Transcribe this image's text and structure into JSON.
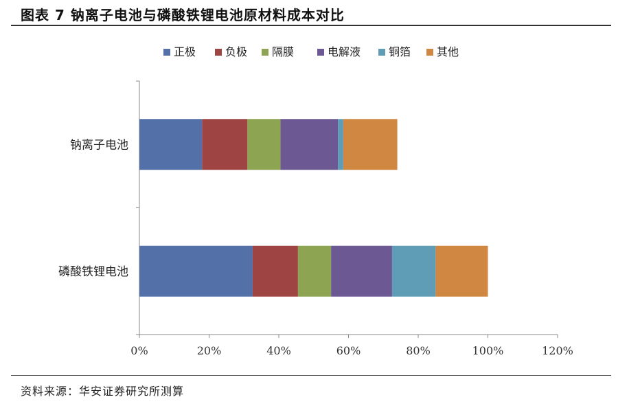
{
  "title": "图表 7  钠离子电池与磷酸铁锂电池原材料成本对比",
  "source": "资料来源：华安证券研究所测算",
  "chart_data": {
    "type": "bar",
    "orientation": "horizontal",
    "stacked": true,
    "categories": [
      "钠离子电池",
      "磷酸铁锂电池"
    ],
    "series": [
      {
        "name": "正极",
        "color": "#5470A8",
        "values": [
          0.18,
          0.325
        ]
      },
      {
        "name": "负极",
        "color": "#9E4543",
        "values": [
          0.13,
          0.13
        ]
      },
      {
        "name": "隔膜",
        "color": "#8DA452",
        "values": [
          0.095,
          0.095
        ]
      },
      {
        "name": "电解液",
        "color": "#6C5892",
        "values": [
          0.165,
          0.175
        ]
      },
      {
        "name": "铜箔",
        "color": "#5E9DB5",
        "values": [
          0.015,
          0.125
        ]
      },
      {
        "name": "其他",
        "color": "#CF8742",
        "values": [
          0.155,
          0.15
        ]
      }
    ],
    "xlim": [
      0,
      1.2
    ],
    "xticks": [
      "0%",
      "20%",
      "40%",
      "60%",
      "80%",
      "100%",
      "120%"
    ],
    "grid": false,
    "legend_position": "top"
  }
}
